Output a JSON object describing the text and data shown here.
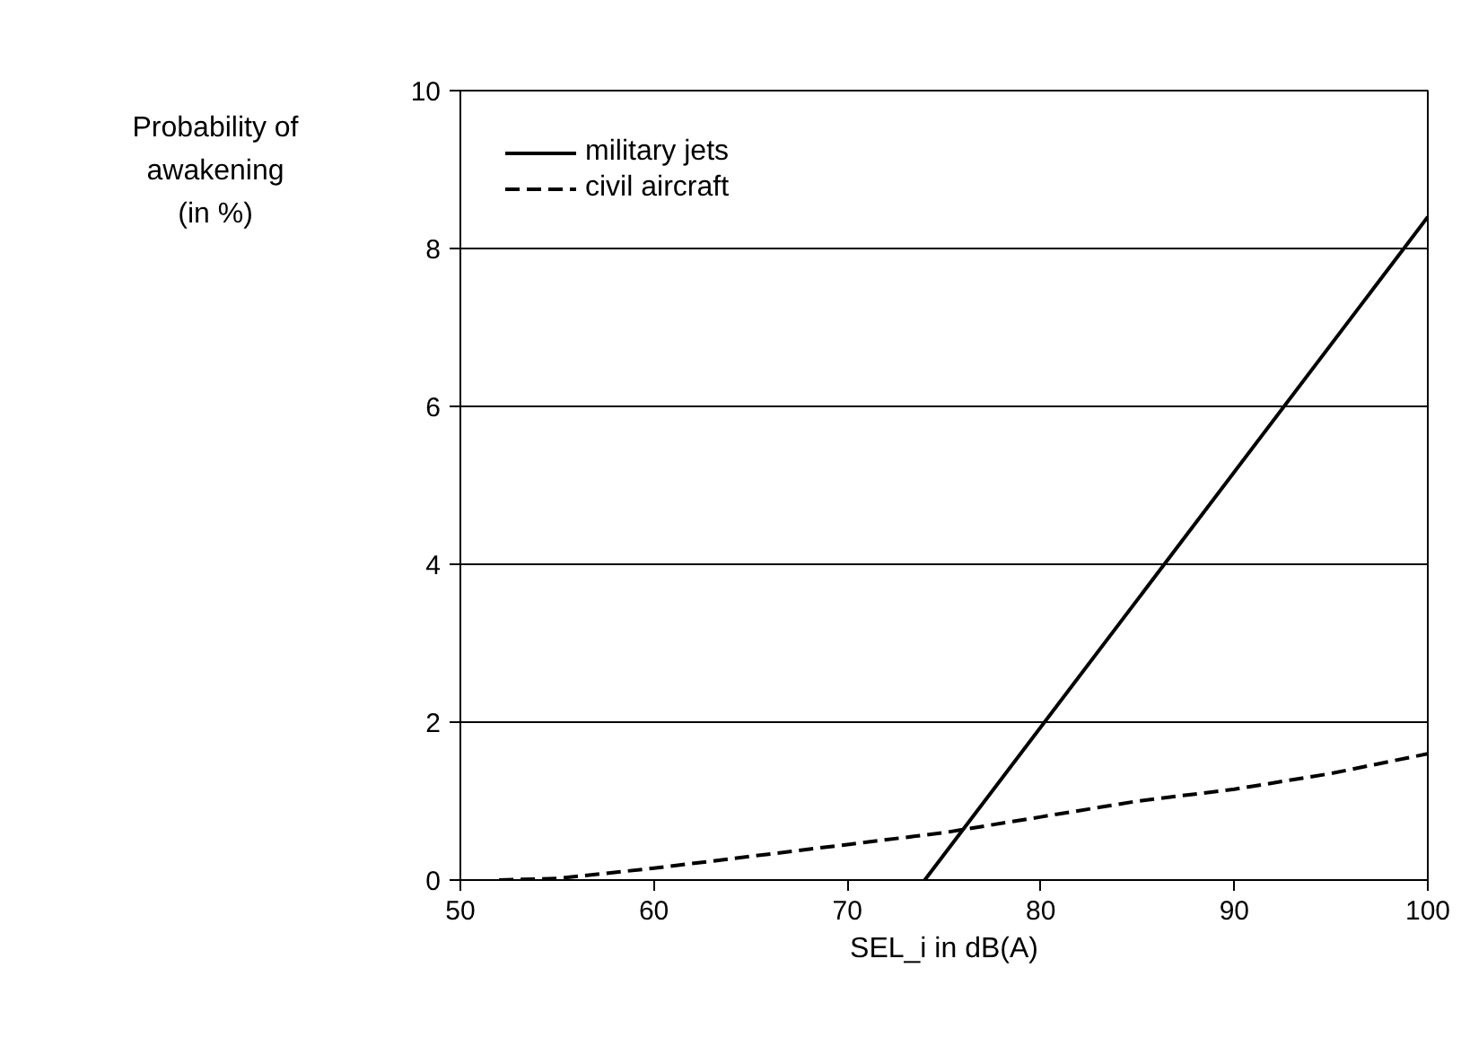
{
  "chart_data": {
    "type": "line",
    "xlabel": "SEL_i in dB(A)",
    "ylabel": "Probability of\nawakening\n(in %)",
    "xlim": [
      50,
      100
    ],
    "xticks": [
      50,
      60,
      70,
      80,
      90,
      100
    ],
    "ylim": [
      0,
      10
    ],
    "yticks": [
      0,
      2,
      4,
      6,
      8,
      10
    ],
    "grid": "y",
    "legend": "top left",
    "marker": "none",
    "series": [
      {
        "name": "military jets",
        "color": "#000000",
        "line_style": "solid",
        "x": [
          74,
          100
        ],
        "values": [
          0,
          8.4
        ]
      },
      {
        "name": "civil aircraft",
        "color": "#000000",
        "line_style": "dashed",
        "x": [
          52,
          55,
          60,
          65,
          70,
          75,
          80,
          85,
          90,
          95,
          100
        ],
        "values": [
          0,
          0.02,
          0.15,
          0.3,
          0.45,
          0.6,
          0.8,
          1.0,
          1.15,
          1.35,
          1.6
        ]
      }
    ]
  }
}
